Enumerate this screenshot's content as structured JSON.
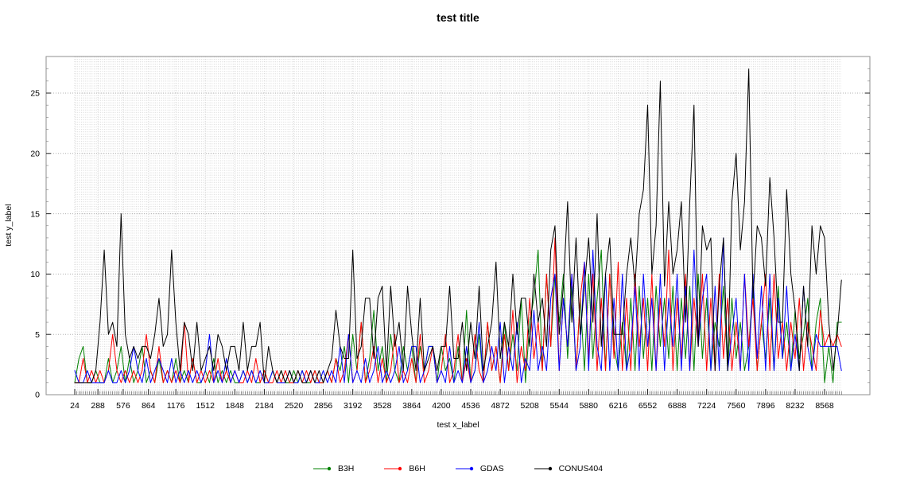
{
  "title": "test title",
  "chart_data": {
    "type": "line",
    "title": "test title",
    "xlabel": "test x_label",
    "ylabel": "test y_label",
    "ylim": [
      0,
      28
    ],
    "y_ticks": [
      0,
      5,
      10,
      15,
      20,
      25
    ],
    "x_tick_values": [
      24,
      288,
      576,
      864,
      1176,
      1512,
      1848,
      2184,
      2520,
      2856,
      3192,
      3528,
      3864,
      4200,
      4536,
      4872,
      5208,
      5544,
      5880,
      6216,
      6552,
      6888,
      7224,
      7560,
      7896,
      8232,
      8568
    ],
    "x_start": 24,
    "x_step": 48,
    "x_minor_tick_step": 24,
    "grid": "dotted-minor-and-major",
    "legend_position": "bottom-center",
    "series": [
      {
        "name": "B3H",
        "color": "#008000",
        "values": [
          1,
          3,
          4,
          1,
          1,
          2,
          1,
          1,
          3,
          1,
          2,
          4,
          1,
          3,
          1,
          2,
          4,
          1,
          2,
          1,
          3,
          1,
          2,
          1,
          3,
          1,
          2,
          1,
          3,
          1,
          1,
          2,
          1,
          3,
          1,
          2,
          1,
          2,
          1,
          1,
          2,
          1,
          2,
          1,
          1,
          2,
          1,
          2,
          1,
          2,
          1,
          1,
          2,
          1,
          2,
          1,
          1,
          2,
          1,
          1,
          2,
          1,
          3,
          2,
          4,
          1,
          5,
          2,
          6,
          1,
          3,
          7,
          2,
          4,
          1,
          5,
          2,
          1,
          4,
          2,
          4,
          1,
          4,
          2,
          4,
          4,
          1,
          4,
          2,
          3,
          1,
          4,
          1,
          7,
          1,
          2,
          5,
          1,
          6,
          2,
          4,
          1,
          6,
          2,
          5,
          2,
          8,
          1,
          6,
          8,
          12,
          2,
          10,
          4,
          10,
          6,
          10,
          3,
          9,
          2,
          8,
          2,
          10,
          3,
          8,
          12,
          2,
          10,
          4,
          2,
          6,
          2,
          8,
          2,
          9,
          3,
          8,
          2,
          9,
          4,
          8,
          3,
          9,
          2,
          8,
          3,
          9,
          2,
          10,
          3,
          8,
          2,
          6,
          4,
          9,
          2,
          8,
          3,
          6,
          2,
          4,
          9,
          2,
          6,
          3,
          8,
          2,
          9,
          3,
          6,
          2,
          7,
          3,
          5,
          8,
          2,
          6,
          8,
          1,
          4,
          1,
          6,
          6
        ]
      },
      {
        "name": "B6H",
        "color": "#ff0000",
        "values": [
          1,
          1,
          3,
          1,
          2,
          1,
          2,
          1,
          2,
          5,
          2,
          1,
          2,
          1,
          2,
          1,
          2,
          5,
          2,
          1,
          4,
          1,
          2,
          1,
          2,
          1,
          6,
          1,
          3,
          1,
          2,
          1,
          2,
          1,
          3,
          1,
          2,
          1,
          2,
          1,
          1,
          2,
          1,
          3,
          1,
          2,
          1,
          1,
          2,
          1,
          2,
          1,
          1,
          2,
          1,
          2,
          1,
          2,
          1,
          1,
          2,
          1,
          3,
          1,
          2,
          5,
          1,
          2,
          6,
          1,
          2,
          4,
          1,
          3,
          1,
          2,
          5,
          1,
          2,
          1,
          3,
          1,
          5,
          1,
          2,
          4,
          1,
          2,
          5,
          1,
          2,
          5,
          1,
          3,
          1,
          5,
          2,
          1,
          6,
          2,
          4,
          1,
          5,
          2,
          7,
          1,
          4,
          2,
          8,
          3,
          6,
          2,
          10,
          4,
          13,
          2,
          8,
          4,
          10,
          2,
          8,
          11,
          3,
          10,
          2,
          8,
          2,
          10,
          3,
          11,
          2,
          8,
          2,
          10,
          4,
          8,
          2,
          10,
          2,
          8,
          4,
          12,
          2,
          8,
          3,
          10,
          2,
          8,
          4,
          10,
          2,
          8,
          2,
          10,
          3,
          8,
          2,
          6,
          2,
          10,
          4,
          8,
          2,
          6,
          10,
          2,
          10,
          3,
          6,
          2,
          6,
          3,
          8,
          2,
          6,
          4,
          2,
          7,
          4,
          5,
          4,
          5,
          4
        ]
      },
      {
        "name": "GDAS",
        "color": "#0000ff",
        "values": [
          2,
          1,
          1,
          2,
          1,
          1,
          1,
          1,
          2,
          1,
          1,
          2,
          1,
          2,
          4,
          2,
          1,
          3,
          1,
          2,
          3,
          2,
          1,
          3,
          1,
          2,
          1,
          2,
          1,
          2,
          1,
          2,
          5,
          1,
          2,
          1,
          3,
          1,
          2,
          1,
          2,
          1,
          2,
          1,
          2,
          1,
          1,
          2,
          1,
          1,
          1,
          2,
          1,
          1,
          2,
          1,
          2,
          1,
          1,
          2,
          1,
          2,
          1,
          4,
          1,
          5,
          1,
          2,
          1,
          3,
          1,
          2,
          4,
          1,
          2,
          1,
          2,
          4,
          1,
          2,
          4,
          4,
          1,
          2,
          4,
          4,
          1,
          2,
          1,
          4,
          1,
          2,
          1,
          4,
          1,
          2,
          6,
          1,
          2,
          4,
          2,
          6,
          1,
          4,
          2,
          6,
          1,
          3,
          2,
          7,
          2,
          4,
          2,
          8,
          10,
          2,
          8,
          4,
          10,
          2,
          4,
          11,
          2,
          12,
          4,
          2,
          10,
          2,
          8,
          2,
          10,
          2,
          4,
          9,
          2,
          10,
          4,
          8,
          2,
          10,
          2,
          8,
          4,
          10,
          2,
          9,
          2,
          12,
          4,
          8,
          10,
          2,
          9,
          2,
          13,
          2,
          5,
          8,
          2,
          10,
          2,
          10,
          3,
          9,
          2,
          10,
          2,
          8,
          3,
          9,
          2,
          5,
          2,
          9,
          4,
          2,
          5,
          4,
          4,
          4,
          4,
          4,
          2
        ]
      },
      {
        "name": "CONUS404",
        "color": "#000000",
        "values": [
          1,
          1,
          1,
          1,
          1,
          2,
          6,
          12,
          5,
          6,
          4,
          15,
          5,
          3,
          4,
          3,
          4,
          4,
          3,
          5,
          8,
          4,
          5,
          12,
          6,
          2,
          6,
          5,
          2,
          6,
          2,
          3,
          4,
          2,
          5,
          4,
          2,
          4,
          4,
          2,
          6,
          2,
          4,
          4,
          6,
          1,
          4,
          2,
          1,
          2,
          1,
          2,
          1,
          2,
          1,
          1,
          2,
          1,
          2,
          1,
          2,
          3,
          7,
          4,
          3,
          3,
          12,
          3,
          4,
          8,
          8,
          3,
          8,
          9,
          2,
          9,
          4,
          6,
          2,
          9,
          5,
          2,
          8,
          2,
          3,
          4,
          2,
          4,
          4,
          9,
          3,
          3,
          6,
          2,
          6,
          3,
          9,
          2,
          4,
          6,
          11,
          3,
          6,
          4,
          10,
          5,
          8,
          8,
          4,
          10,
          6,
          8,
          4,
          12,
          14,
          5,
          9,
          16,
          6,
          13,
          5,
          9,
          13,
          6,
          15,
          4,
          10,
          13,
          5,
          5,
          5,
          10,
          13,
          9,
          15,
          17,
          24,
          10,
          14,
          26,
          9,
          16,
          10,
          12,
          16,
          6,
          16,
          24,
          4,
          14,
          12,
          13,
          2,
          9,
          13,
          2,
          16,
          20,
          12,
          16,
          27,
          8,
          14,
          13,
          9,
          18,
          13,
          6,
          6,
          17,
          10,
          7,
          2,
          9,
          4,
          14,
          10,
          14,
          13,
          6,
          2,
          5,
          9.5
        ]
      }
    ]
  }
}
